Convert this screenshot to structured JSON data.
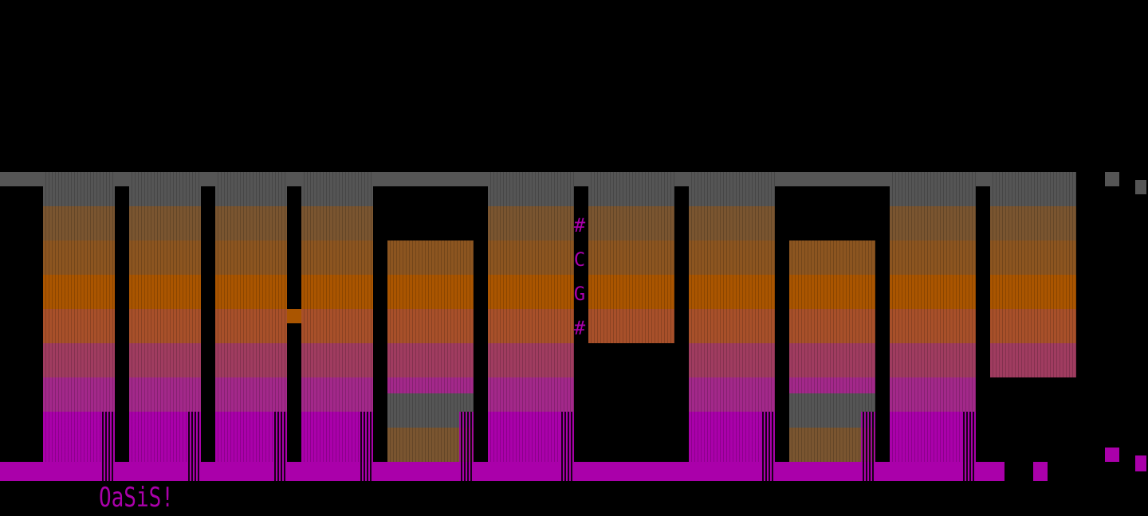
{
  "artwork": {
    "signature": "OaSiS!",
    "vertical_tag": [
      "#",
      "C",
      "G",
      "#"
    ],
    "colors": {
      "background": "#000000",
      "gray": "#555555",
      "orange": "#aa5500",
      "magenta": "#aa00aa"
    }
  }
}
